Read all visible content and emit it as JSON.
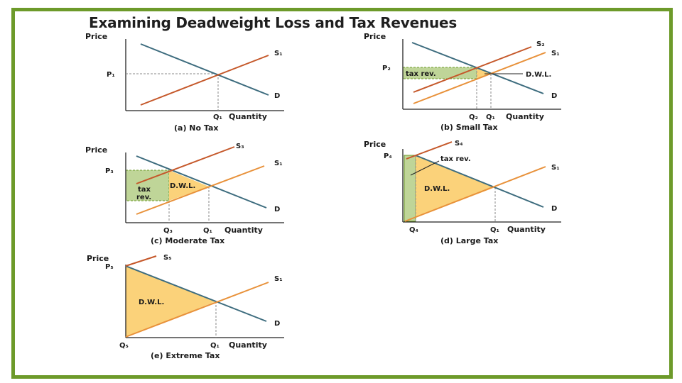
{
  "title": "Examining Deadweight Loss and Tax Revenues",
  "colors": {
    "frame": "#6d9a2a",
    "demand": "#3d6c7e",
    "supply_original": "#e8913a",
    "supply_taxed": "#c5582a",
    "tax_revenue_fill": "#bfd598",
    "dwl_fill": "#fbd27a"
  },
  "panels": {
    "a": {
      "price_label": "Price",
      "p_label": "P₁",
      "q_label": "Q₁",
      "quantity_label": "Quantity",
      "supply_label": "S₁",
      "demand_label": "D",
      "caption": "(a) No Tax"
    },
    "b": {
      "price_label": "Price",
      "p_label": "P₂",
      "q_tax_label": "Q₂",
      "q_label": "Q₁",
      "quantity_label": "Quantity",
      "supply_tax_label": "S₂",
      "supply_label": "S₁",
      "demand_label": "D",
      "tax_rev_label": "tax rev.",
      "dwl_label": "D.W.L.",
      "caption": "(b) Small Tax"
    },
    "c": {
      "price_label": "Price",
      "p_label": "P₃",
      "q_tax_label": "Q₃",
      "q_label": "Q₁",
      "quantity_label": "Quantity",
      "supply_tax_label": "S₃",
      "supply_label": "S₁",
      "demand_label": "D",
      "tax_rev_label_1": "tax",
      "tax_rev_label_2": "rev.",
      "dwl_label": "D.W.L.",
      "caption": "(c) Moderate Tax"
    },
    "d": {
      "price_label": "Price",
      "p_label": "P₄",
      "q_tax_label": "Q₄",
      "q_label": "Q₁",
      "quantity_label": "Quantity",
      "supply_tax_label": "S₄",
      "supply_label": "S₁",
      "demand_label": "D",
      "tax_rev_label": "tax rev.",
      "dwl_label": "D.W.L.",
      "caption": "(d) Large Tax"
    },
    "e": {
      "price_label": "Price",
      "p_label": "P₅",
      "q_tax_label": "Q₅",
      "q_label": "Q₁",
      "quantity_label": "Quantity",
      "supply_tax_label": "S₅",
      "supply_label": "S₁",
      "demand_label": "D",
      "dwl_label": "D.W.L.",
      "caption": "(e) Extreme Tax"
    }
  }
}
